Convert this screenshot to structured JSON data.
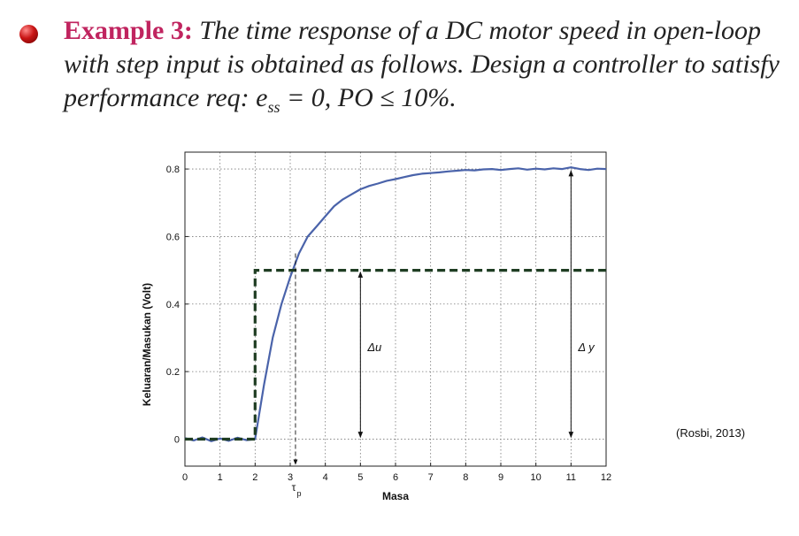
{
  "slide": {
    "title_lead": "Example 3:",
    "title_body": "The time response of a DC motor speed in open-loop with step input is obtained as follows. Design a controller to satisfy performance req: e",
    "subscript": "ss",
    "title_tail": " = 0, PO ≤ 10%.",
    "citation": "(Rosbi, 2013)",
    "bullet_color": "#c91515"
  },
  "chart_data": {
    "type": "line",
    "xlabel": "Masa",
    "ylabel": "Keluaran/Masukan (Volt)",
    "xlim": [
      0,
      12
    ],
    "ylim": [
      -0.08,
      0.85
    ],
    "xticks": [
      0,
      1,
      2,
      3,
      4,
      5,
      6,
      7,
      8,
      9,
      10,
      11,
      12
    ],
    "yticks": [
      0,
      0.2,
      0.4,
      0.6,
      0.8
    ],
    "ytick_labels": [
      "0",
      "0.2",
      "0.4",
      "0.6",
      "0.8"
    ],
    "grid": true,
    "series": [
      {
        "style": "solid",
        "color": "#4a63aa",
        "x": [
          0,
          0.25,
          0.5,
          0.75,
          1,
          1.25,
          1.5,
          1.75,
          2,
          2.25,
          2.5,
          2.75,
          3,
          3.25,
          3.5,
          3.75,
          4,
          4.25,
          4.5,
          4.75,
          5,
          5.25,
          5.5,
          5.75,
          6,
          6.25,
          6.5,
          6.75,
          7,
          7.25,
          7.5,
          7.75,
          8,
          8.25,
          8.5,
          8.75,
          9,
          9.25,
          9.5,
          9.75,
          10,
          10.25,
          10.5,
          10.75,
          11,
          11.25,
          11.5,
          11.75,
          12
        ],
        "y": [
          0.003,
          -0.004,
          0.005,
          -0.006,
          0.002,
          -0.005,
          0.004,
          -0.003,
          0.0,
          0.16,
          0.3,
          0.4,
          0.48,
          0.55,
          0.6,
          0.63,
          0.66,
          0.69,
          0.71,
          0.725,
          0.74,
          0.75,
          0.757,
          0.765,
          0.77,
          0.776,
          0.782,
          0.786,
          0.788,
          0.79,
          0.793,
          0.795,
          0.797,
          0.796,
          0.799,
          0.8,
          0.797,
          0.8,
          0.802,
          0.798,
          0.801,
          0.799,
          0.802,
          0.8,
          0.805,
          0.8,
          0.797,
          0.801,
          0.8
        ]
      },
      {
        "style": "dashed",
        "color": "#1f3d22",
        "x": [
          0,
          2,
          2,
          12
        ],
        "y": [
          0,
          0,
          0.5,
          0.5
        ]
      }
    ],
    "annotations": [
      {
        "label": "τ",
        "sub": "p",
        "x": 3.15,
        "y_from": 0.55,
        "y_to": -0.08
      },
      {
        "label": "Δu",
        "x": 5,
        "y_from": 0.5,
        "y_to": 0,
        "label_y": 0.26
      },
      {
        "label": "Δ y",
        "x": 11,
        "y_from": 0.8,
        "y_to": 0,
        "label_y": 0.26
      }
    ]
  }
}
